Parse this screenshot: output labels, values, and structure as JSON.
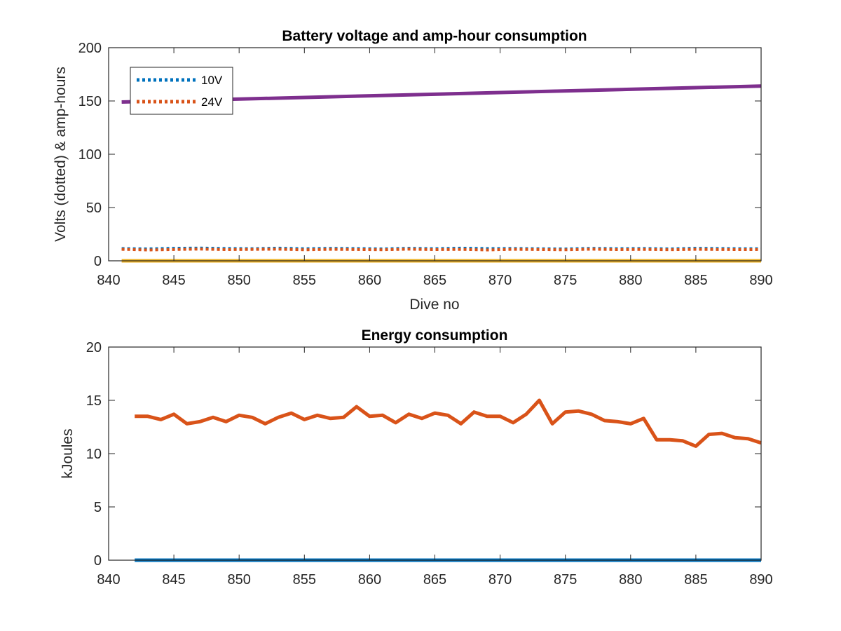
{
  "chart_data": [
    {
      "type": "line",
      "title": "Battery voltage and amp-hour consumption",
      "xlabel": "Dive no",
      "ylabel": "Volts (dotted) & amp-hours",
      "xlim": [
        840,
        890
      ],
      "ylim": [
        0,
        200
      ],
      "xticks": [
        "840",
        "845",
        "850",
        "855",
        "860",
        "865",
        "870",
        "875",
        "880",
        "885",
        "890"
      ],
      "yticks": [
        "0",
        "50",
        "100",
        "150",
        "200"
      ],
      "grid": false,
      "legend_position": "top-left",
      "series": [
        {
          "name": "10V",
          "style": "dotted",
          "color": "#0072BD",
          "x": [
            841,
            843,
            845,
            847,
            849,
            851,
            853,
            855,
            857,
            859,
            861,
            863,
            865,
            867,
            869,
            871,
            873,
            875,
            877,
            879,
            881,
            883,
            885,
            887,
            889,
            890
          ],
          "values": [
            11.5,
            11.2,
            11.8,
            12.0,
            11.6,
            11.4,
            11.9,
            11.3,
            11.7,
            11.5,
            11.2,
            11.8,
            11.4,
            11.9,
            11.5,
            11.6,
            11.3,
            11.1,
            11.7,
            11.4,
            11.6,
            11.2,
            11.8,
            11.5,
            11.3,
            11.4
          ]
        },
        {
          "name": "24V",
          "style": "dotted",
          "color": "#D95319",
          "x": [
            841,
            843,
            845,
            847,
            849,
            851,
            853,
            855,
            857,
            859,
            861,
            863,
            865,
            867,
            869,
            871,
            873,
            875,
            877,
            879,
            881,
            883,
            885,
            887,
            889,
            890
          ],
          "values": [
            10.8,
            10.2,
            10.6,
            11.0,
            10.5,
            10.7,
            10.9,
            10.3,
            10.8,
            10.6,
            10.4,
            10.9,
            10.5,
            10.7,
            10.2,
            10.8,
            10.6,
            10.3,
            10.9,
            10.5,
            10.7,
            10.4,
            10.8,
            10.6,
            10.5,
            10.6
          ]
        },
        {
          "style": "solid",
          "color": "#EDB120",
          "x": [
            841,
            890
          ],
          "values": [
            0,
            0
          ]
        },
        {
          "style": "solid",
          "color": "#7E2F8E",
          "x": [
            841,
            890
          ],
          "values": [
            149,
            164
          ]
        }
      ]
    },
    {
      "type": "line",
      "title": "Energy consumption",
      "xlabel": "",
      "ylabel": "kJoules",
      "xlim": [
        840,
        890
      ],
      "ylim": [
        0,
        20
      ],
      "xticks": [
        "840",
        "845",
        "850",
        "855",
        "860",
        "865",
        "870",
        "875",
        "880",
        "885",
        "890"
      ],
      "yticks": [
        "0",
        "5",
        "10",
        "15",
        "20"
      ],
      "grid": false,
      "series": [
        {
          "style": "solid",
          "color": "#0072BD",
          "x": [
            842,
            890
          ],
          "values": [
            0,
            0
          ]
        },
        {
          "style": "solid",
          "color": "#D95319",
          "x": [
            842,
            843,
            844,
            845,
            846,
            847,
            848,
            849,
            850,
            851,
            852,
            853,
            854,
            855,
            856,
            857,
            858,
            859,
            860,
            861,
            862,
            863,
            864,
            865,
            866,
            867,
            868,
            869,
            870,
            871,
            872,
            873,
            874,
            875,
            876,
            877,
            878,
            879,
            880,
            881,
            882,
            883,
            884,
            885,
            886,
            887,
            888,
            889,
            890
          ],
          "values": [
            13.5,
            13.5,
            13.2,
            13.7,
            12.8,
            13.0,
            13.4,
            13.0,
            13.6,
            13.4,
            12.8,
            13.4,
            13.8,
            13.2,
            13.6,
            13.3,
            13.4,
            14.4,
            13.5,
            13.6,
            12.9,
            13.7,
            13.3,
            13.8,
            13.6,
            12.8,
            13.9,
            13.5,
            13.5,
            12.9,
            13.7,
            15.0,
            12.8,
            13.9,
            14.0,
            13.7,
            13.1,
            13.0,
            12.8,
            13.3,
            11.3,
            11.3,
            11.2,
            10.7,
            11.8,
            11.9,
            11.5,
            11.4,
            11.0
          ]
        }
      ]
    }
  ]
}
